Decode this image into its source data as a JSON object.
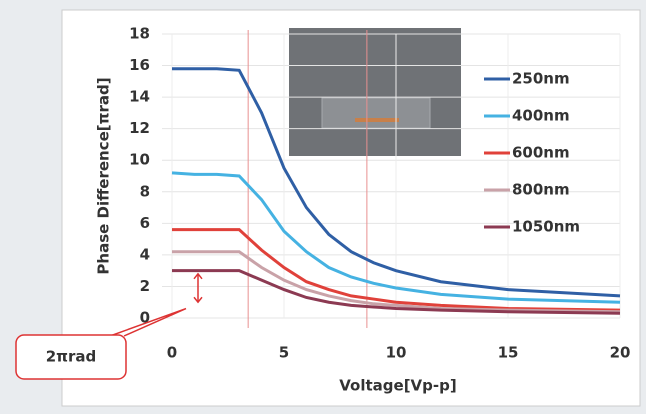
{
  "chart_data": {
    "type": "line",
    "x_label": "Voltage[Vp-p]",
    "y_label": "Phase Difference[πrad]",
    "annotation": "2πrad",
    "x": [
      0,
      1,
      2,
      3,
      4,
      5,
      6,
      7,
      8,
      9,
      10,
      12,
      15,
      20
    ],
    "series": [
      {
        "name": "250nm",
        "color": "#2f5fa5",
        "values": [
          15.8,
          15.8,
          15.8,
          15.7,
          13,
          9.5,
          7,
          5.3,
          4.2,
          3.5,
          3.0,
          2.3,
          1.8,
          1.4
        ]
      },
      {
        "name": "400nm",
        "color": "#45b2e2",
        "values": [
          9.2,
          9.1,
          9.1,
          9.0,
          7.5,
          5.5,
          4.2,
          3.2,
          2.6,
          2.2,
          1.9,
          1.5,
          1.2,
          1.0
        ]
      },
      {
        "name": "600nm",
        "color": "#e0413a",
        "values": [
          5.6,
          5.6,
          5.6,
          5.6,
          4.3,
          3.2,
          2.3,
          1.8,
          1.4,
          1.2,
          1.0,
          0.8,
          0.6,
          0.5
        ]
      },
      {
        "name": "800nm",
        "color": "#c9a2a8",
        "values": [
          4.2,
          4.2,
          4.2,
          4.2,
          3.2,
          2.4,
          1.8,
          1.4,
          1.1,
          0.9,
          0.8,
          0.6,
          0.5,
          0.4
        ]
      },
      {
        "name": "1050nm",
        "color": "#8c3a52",
        "values": [
          3.0,
          3.0,
          3.0,
          3.0,
          2.4,
          1.8,
          1.3,
          1.0,
          0.8,
          0.7,
          0.6,
          0.5,
          0.4,
          0.3
        ]
      }
    ],
    "xlim": [
      0,
      20
    ],
    "xticks": [
      0,
      5,
      10,
      15,
      20
    ],
    "ylim": [
      0,
      18
    ],
    "yticks": [
      0,
      2,
      4,
      6,
      8,
      10,
      12,
      14,
      16,
      18
    ],
    "vlines": [
      3.4,
      8.7
    ],
    "vline_color": "#e89090",
    "grid": true
  }
}
